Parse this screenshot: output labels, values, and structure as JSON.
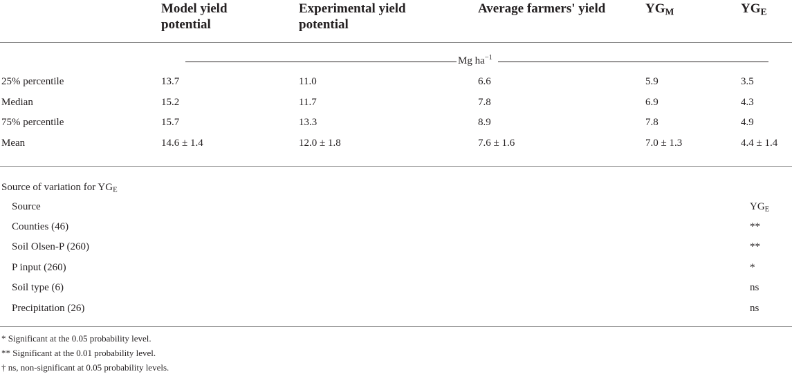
{
  "header": {
    "col1": "Model yield potential",
    "col2": "Experimental yield potential",
    "col3": "Average farmers' yield",
    "col4_base": "YG",
    "col4_sub": "M",
    "col5_base": "YG",
    "col5_sub": "E"
  },
  "units": {
    "base": "Mg ha",
    "sup": "−1"
  },
  "rows": [
    {
      "label": "25% percentile",
      "v1": "13.7",
      "v2": "11.0",
      "v3": "6.6",
      "v4": "5.9",
      "v5": "3.5"
    },
    {
      "label": "Median",
      "v1": "15.2",
      "v2": "11.7",
      "v3": "7.8",
      "v4": "6.9",
      "v5": "4.3"
    },
    {
      "label": "75% percentile",
      "v1": "15.7",
      "v2": "13.3",
      "v3": "8.9",
      "v4": "7.8",
      "v5": "4.9"
    },
    {
      "label": "Mean",
      "v1": "14.6 ± 1.4",
      "v2": "12.0 ± 1.8",
      "v3": "7.6 ± 1.6",
      "v4": "7.0 ± 1.3",
      "v5": "4.4 ± 1.4"
    }
  ],
  "variation": {
    "title_base": "Source of variation for YG",
    "title_sub": "E",
    "source_label": "Source",
    "source_col_base": "YG",
    "source_col_sub": "E",
    "items": [
      {
        "label": "Counties (46)",
        "sig": "**"
      },
      {
        "label": "Soil Olsen-P (260)",
        "sig": "**"
      },
      {
        "label": "P input (260)",
        "sig": "*"
      },
      {
        "label": "Soil type (6)",
        "sig": "ns"
      },
      {
        "label": "Precipitation (26)",
        "sig": "ns"
      }
    ]
  },
  "footnotes": [
    "* Significant at the 0.05 probability level.",
    "** Significant at the 0.01 probability level.",
    "† ns, non-significant at 0.05 probability levels."
  ]
}
